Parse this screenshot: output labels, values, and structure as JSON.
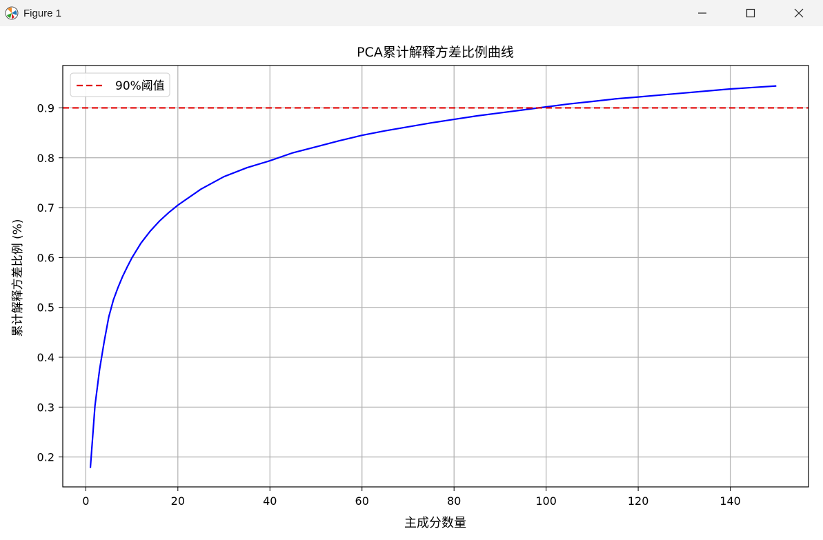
{
  "window": {
    "title": "Figure 1",
    "icon": "matplotlib-icon",
    "controls": [
      "minimize-icon",
      "maximize-icon",
      "close-icon"
    ]
  },
  "chart_data": {
    "type": "line",
    "title": "PCA累计解释方差比例曲线",
    "xlabel": "主成分数量",
    "ylabel": "累计解释方差比例 (%)",
    "xlim": [
      -5,
      157
    ],
    "ylim": [
      0.14,
      0.985
    ],
    "xticks": [
      0,
      20,
      40,
      60,
      80,
      100,
      120,
      140
    ],
    "yticks": [
      0.2,
      0.3,
      0.4,
      0.5,
      0.6,
      0.7,
      0.8,
      0.9
    ],
    "grid": true,
    "legend_position": "upper-left",
    "series": [
      {
        "kind": "curve",
        "color": "#0000ff",
        "x": [
          1,
          2,
          3,
          4,
          5,
          6,
          7,
          8,
          9,
          10,
          12,
          14,
          16,
          18,
          20,
          25,
          30,
          35,
          40,
          45,
          50,
          55,
          60,
          65,
          70,
          75,
          80,
          85,
          90,
          95,
          100,
          105,
          110,
          115,
          120,
          125,
          130,
          135,
          140,
          145,
          150
        ],
        "y": [
          0.178,
          0.303,
          0.376,
          0.432,
          0.481,
          0.515,
          0.54,
          0.562,
          0.581,
          0.599,
          0.629,
          0.653,
          0.673,
          0.69,
          0.705,
          0.737,
          0.762,
          0.78,
          0.794,
          0.81,
          0.822,
          0.834,
          0.845,
          0.854,
          0.862,
          0.87,
          0.877,
          0.884,
          0.89,
          0.896,
          0.902,
          0.908,
          0.913,
          0.918,
          0.922,
          0.926,
          0.93,
          0.934,
          0.938,
          0.941,
          0.944
        ]
      },
      {
        "kind": "threshold",
        "name": "90%阈值",
        "color": "#e00000",
        "y": 0.9,
        "style": "dashed"
      }
    ]
  }
}
